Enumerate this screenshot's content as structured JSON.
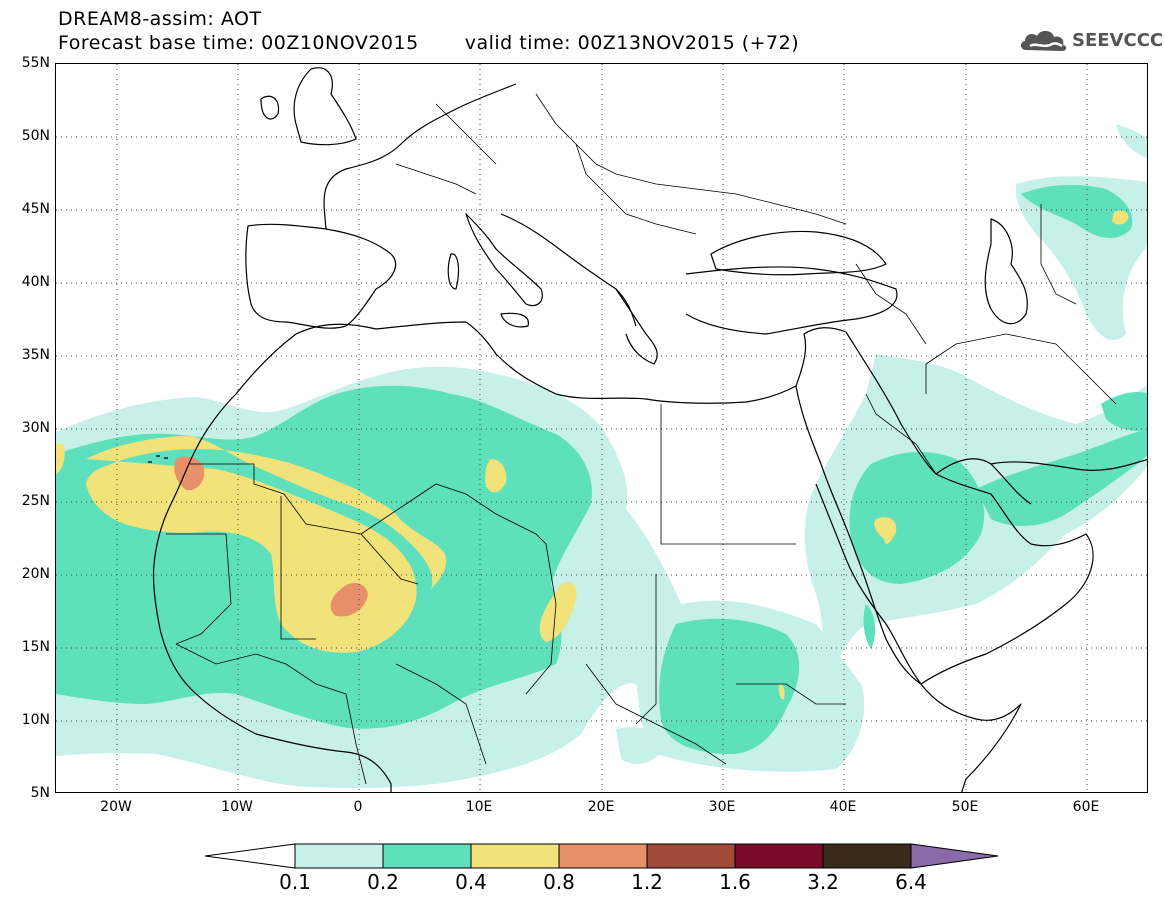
{
  "title": "DREAM8-assim: AOT",
  "subtitle_base": "Forecast base time: 00Z10NOV2015",
  "subtitle_valid": "valid time: 00Z13NOV2015 (+72)",
  "logo_text": "SEEVCCC",
  "map": {
    "lon_range": [
      -25,
      65
    ],
    "lat_range": [
      5,
      55
    ],
    "lat_ticks": [
      "5N",
      "10N",
      "15N",
      "20N",
      "25N",
      "30N",
      "35N",
      "40N",
      "45N",
      "50N",
      "55N"
    ],
    "lon_ticks": [
      "20W",
      "10W",
      "0",
      "10E",
      "20E",
      "30E",
      "40E",
      "50E",
      "60E"
    ],
    "grid": "dotted"
  },
  "legend": {
    "labels": [
      "0.1",
      "0.2",
      "0.4",
      "0.8",
      "1.2",
      "1.6",
      "3.2",
      "6.4"
    ],
    "colors": [
      "#ffffff",
      "#c6f0e8",
      "#5ee0bd",
      "#f2e27a",
      "#e8906a",
      "#a04a3a",
      "#7a0a2a",
      "#3a2a1a",
      "#8a6aa8"
    ]
  }
}
